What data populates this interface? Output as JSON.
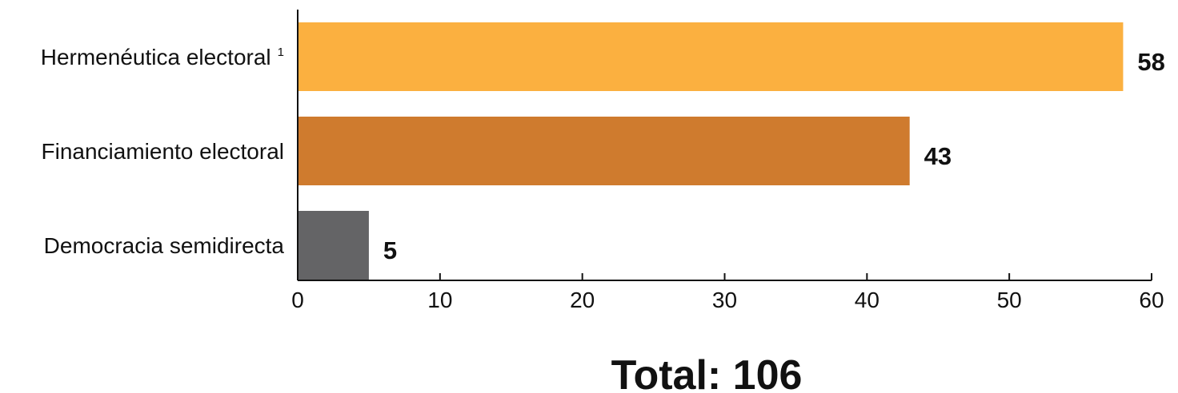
{
  "chart_data": {
    "type": "bar",
    "orientation": "horizontal",
    "categories": [
      "Hermenéutica electoral",
      "Financiamiento electoral",
      "Democracia semidirecta"
    ],
    "category_superscripts": [
      "1",
      "",
      ""
    ],
    "values": [
      58,
      43,
      5
    ],
    "value_labels": [
      "58",
      "43",
      "5"
    ],
    "colors": [
      "#FBB040",
      "#CF7B2E",
      "#646466"
    ],
    "xlim": [
      0,
      60
    ],
    "xticks": [
      "0",
      "10",
      "20",
      "30",
      "40",
      "50",
      "60"
    ],
    "grid": false,
    "legend": "none",
    "total_label": "Total: 106"
  }
}
